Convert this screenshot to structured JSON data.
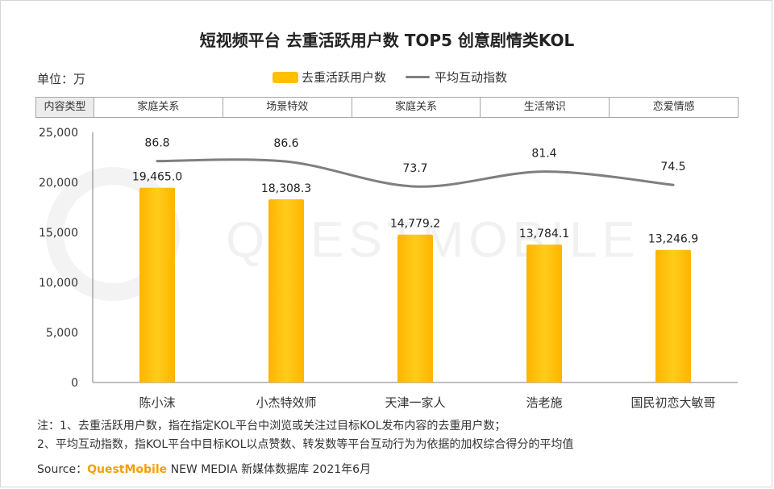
{
  "title": "短视频平台 去重活跃用户数 TOP5 创意剧情类KOL",
  "unit_label": "单位：万",
  "legend": {
    "bar_label": "去重活跃用户数",
    "line_label": "平均互动指数"
  },
  "type_row": {
    "header": "内容类型",
    "values": [
      "家庭关系",
      "场景特效",
      "家庭关系",
      "生活常识",
      "恋爱情感"
    ]
  },
  "watermark": "QUESTMOBILE",
  "chart_data": {
    "type": "bar",
    "categories": [
      "陈小沫",
      "小杰特效师",
      "天津一家人",
      "浩老施",
      "国民初恋大敏哥"
    ],
    "series": [
      {
        "name": "去重活跃用户数",
        "kind": "bar",
        "values": [
          19465.0,
          18308.3,
          14779.2,
          13784.1,
          13246.9
        ],
        "labels": [
          "19,465.0",
          "18,308.3",
          "14,779.2",
          "13,784.1",
          "13,246.9"
        ]
      },
      {
        "name": "平均互动指数",
        "kind": "line",
        "values": [
          86.8,
          86.6,
          73.7,
          81.4,
          74.5
        ],
        "labels": [
          "86.8",
          "86.6",
          "73.7",
          "81.4",
          "74.5"
        ]
      }
    ],
    "ylim": [
      0,
      25000
    ],
    "yticks": [
      0,
      5000,
      10000,
      15000,
      20000,
      25000
    ],
    "ytick_labels": [
      "0",
      "5,000",
      "10,000",
      "15,000",
      "20,000",
      "25,000"
    ],
    "colors": {
      "bar": "#ffc000",
      "bar_dark": "#f5b200",
      "line": "#7f7f7f"
    }
  },
  "notes": [
    "注：1、去重活跃用户数，指在指定KOL平台中浏览或关注过目标KOL发布内容的去重用户数；",
    "2、平均互动指数，指KOL平台中目标KOL以点赞数、转发数等平台互动行为为依据的加权综合得分的平均值"
  ],
  "source": {
    "prefix": "Source：",
    "brand": "QuestMobile",
    "rest": " NEW MEDIA 新媒体数据库 2021年6月"
  }
}
